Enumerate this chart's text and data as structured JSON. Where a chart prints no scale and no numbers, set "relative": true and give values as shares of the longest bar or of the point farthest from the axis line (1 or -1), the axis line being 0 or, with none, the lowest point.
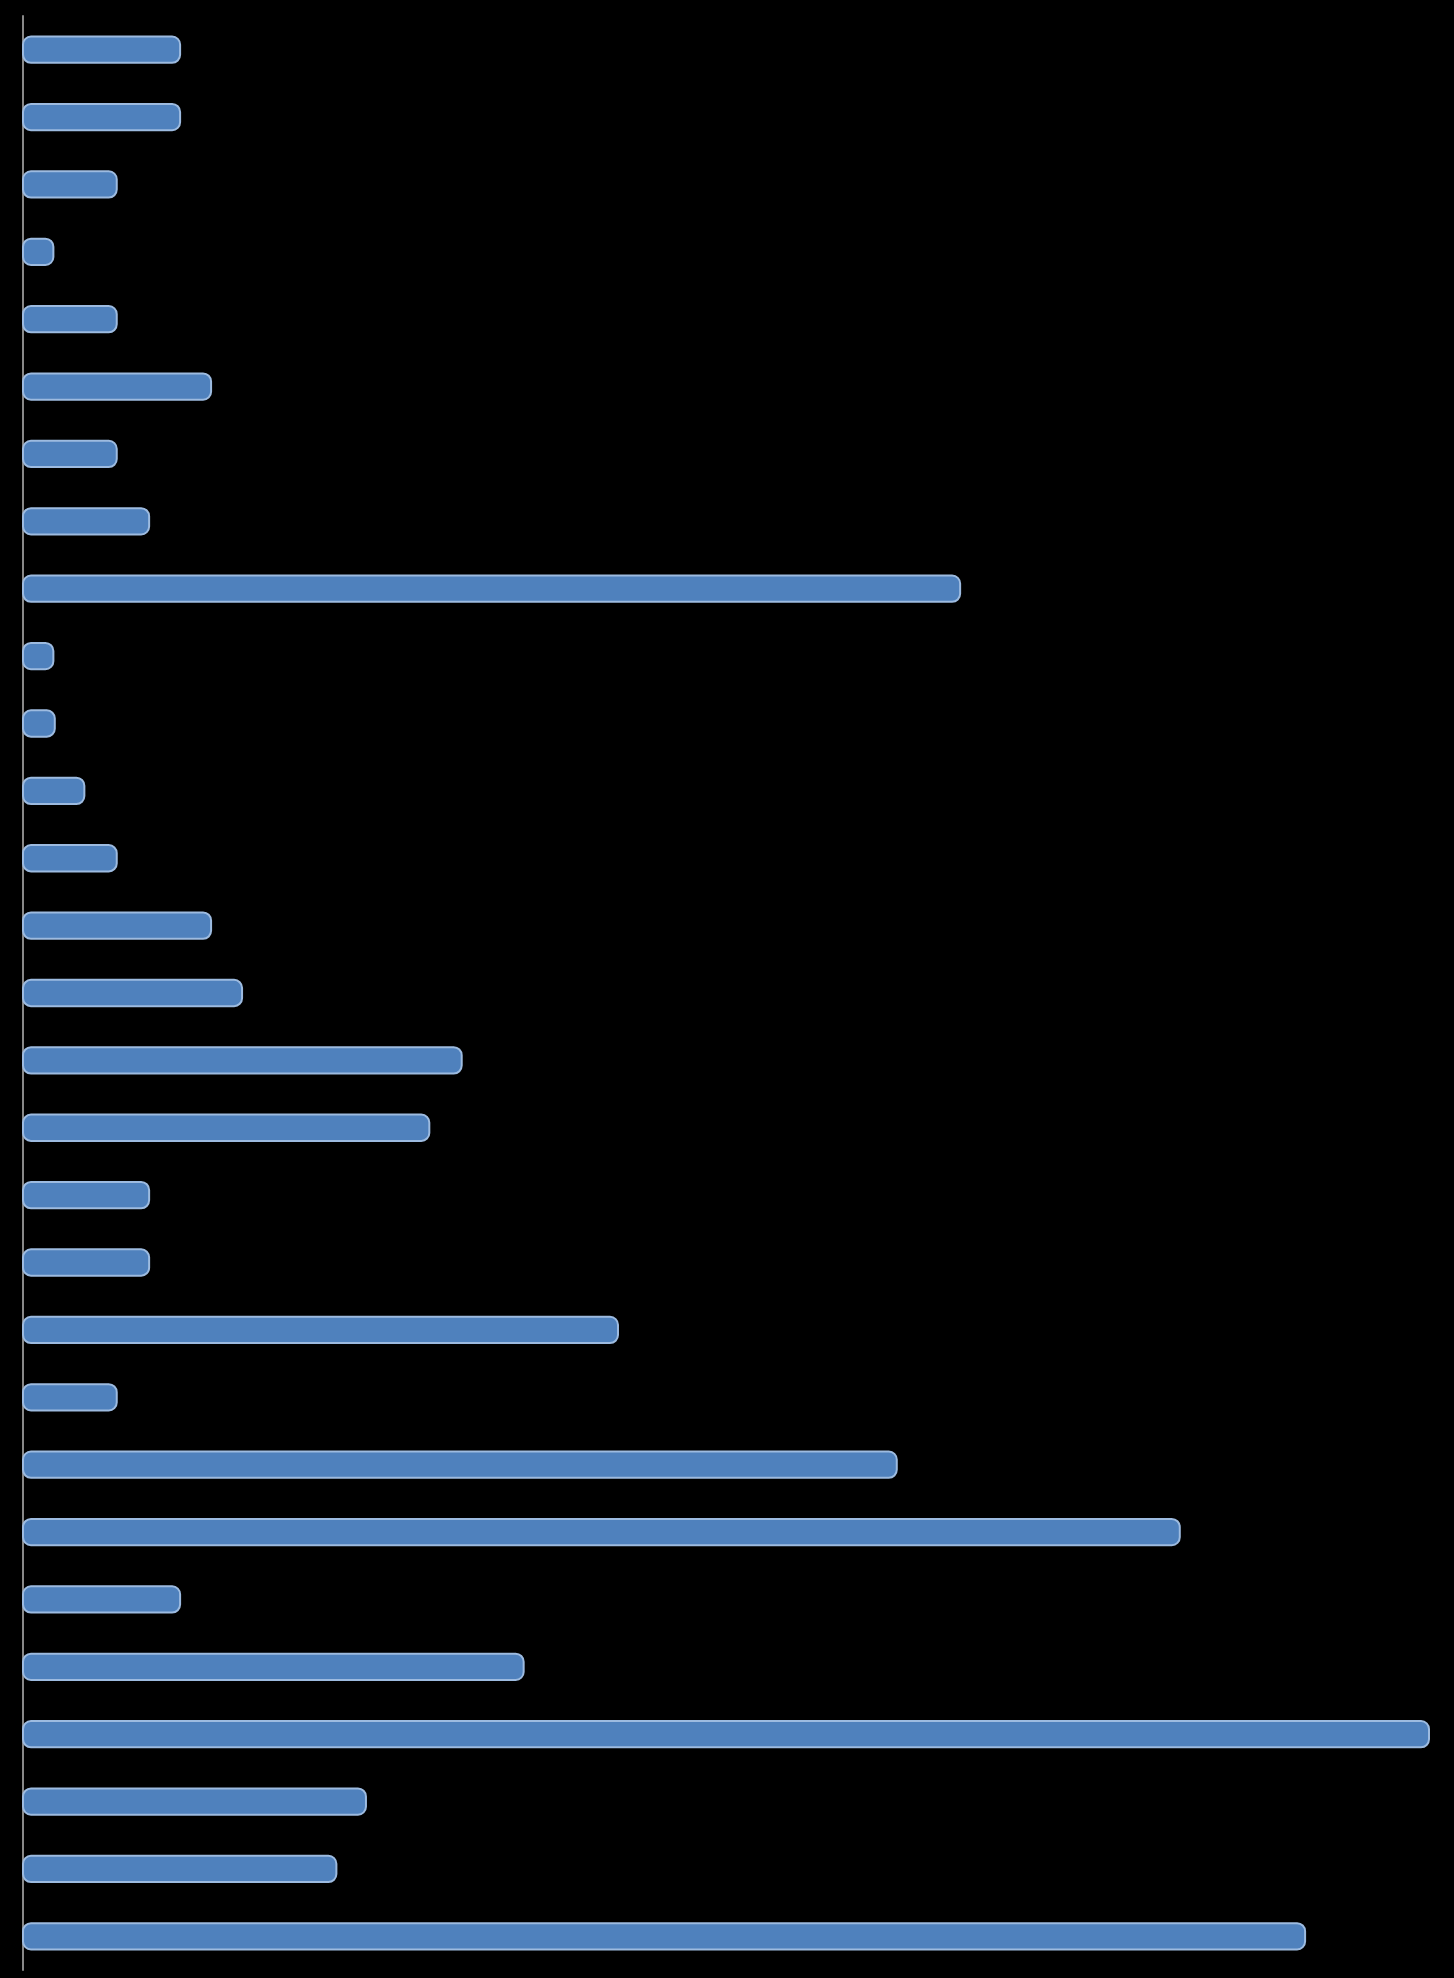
{
  "chart_data": {
    "type": "bar",
    "orientation": "horizontal",
    "relative": true,
    "color": "#4f81bd",
    "categories": [
      null,
      null,
      null,
      null,
      null,
      null,
      null,
      null,
      null,
      null,
      null,
      null,
      null,
      null,
      null,
      null,
      null,
      null,
      null,
      null,
      null,
      null,
      null,
      null,
      null,
      null,
      null,
      null,
      null
    ],
    "values": [
      0.113,
      0.113,
      0.068,
      0.023,
      0.068,
      0.135,
      0.068,
      0.091,
      0.667,
      0.023,
      0.024,
      0.045,
      0.068,
      0.135,
      0.157,
      0.313,
      0.29,
      0.091,
      0.091,
      0.424,
      0.068,
      0.622,
      0.823,
      0.113,
      0.357,
      1,
      0.245,
      0.224,
      0.912
    ]
  }
}
